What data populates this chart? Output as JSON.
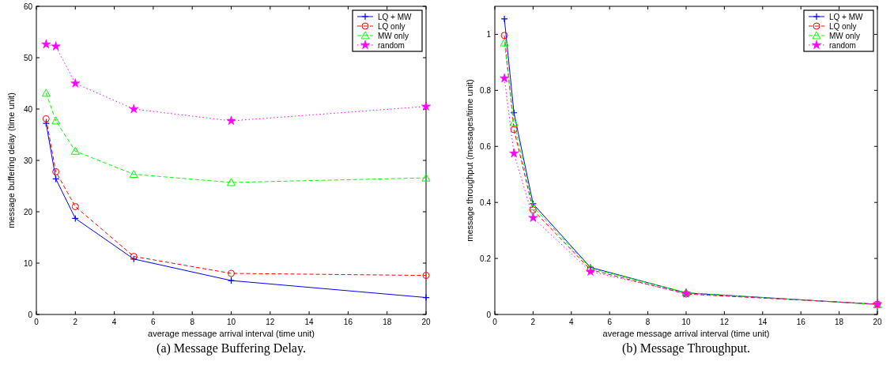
{
  "chart_data": [
    {
      "type": "line",
      "xlabel": "average message arrival interval (time unit)",
      "ylabel": "message buffering delay (time unit)",
      "annotations": [
        "(a) Message Buffering Delay."
      ],
      "x": [
        0.5,
        1,
        2,
        5,
        10,
        20
      ],
      "xlim": [
        0,
        20
      ],
      "xticks": [
        0,
        2,
        4,
        6,
        8,
        10,
        12,
        14,
        16,
        18,
        20
      ],
      "ylim": [
        0,
        60
      ],
      "yticks": [
        0,
        10,
        20,
        30,
        40,
        50,
        60
      ],
      "grid": false,
      "legend": "top right",
      "series": [
        {
          "name": "LQ + MW",
          "color": "#0000ff",
          "marker": "cross",
          "line_style": "solid",
          "values": [
            37.2,
            26.4,
            18.7,
            10.8,
            6.6,
            3.3
          ]
        },
        {
          "name": "LQ only",
          "color": "#ff0000",
          "marker": "circle",
          "line_style": "dashed",
          "values": [
            38.1,
            27.8,
            21.0,
            11.3,
            8.0,
            7.6
          ]
        },
        {
          "name": "MW only",
          "color": "#00ff00",
          "marker": "triangle",
          "line_style": "dashed",
          "values": [
            43.1,
            37.7,
            31.8,
            27.3,
            25.7,
            26.6
          ]
        },
        {
          "name": "random",
          "color": "#ff00ff",
          "marker": "star",
          "line_style": "dotted",
          "values": [
            52.6,
            52.2,
            45.0,
            40.0,
            37.7,
            40.5
          ]
        }
      ]
    },
    {
      "type": "line",
      "xlabel": "average message arrival interval (time unit)",
      "ylabel": "message throughput (messages/time unit)",
      "annotations": [
        "(b) Message Throughput."
      ],
      "x": [
        0.5,
        1,
        2,
        5,
        10,
        20
      ],
      "xlim": [
        0,
        20
      ],
      "xticks": [
        0,
        2,
        4,
        6,
        8,
        10,
        12,
        14,
        16,
        18,
        20
      ],
      "ylim": [
        0,
        1.1
      ],
      "yticks": [
        0,
        0.2,
        0.4,
        0.6,
        0.8,
        1
      ],
      "grid": false,
      "legend": "top right",
      "series": [
        {
          "name": "LQ + MW",
          "color": "#0000ff",
          "marker": "cross",
          "line_style": "solid",
          "values": [
            1.055,
            0.72,
            0.395,
            0.168,
            0.077,
            0.036
          ]
        },
        {
          "name": "LQ only",
          "color": "#ff0000",
          "marker": "circle",
          "line_style": "dashed",
          "values": [
            0.996,
            0.66,
            0.373,
            0.16,
            0.073,
            0.037
          ]
        },
        {
          "name": "MW only",
          "color": "#00ff00",
          "marker": "triangle",
          "line_style": "dashed",
          "values": [
            0.97,
            0.685,
            0.385,
            0.165,
            0.078,
            0.035
          ]
        },
        {
          "name": "random",
          "color": "#ff00ff",
          "marker": "star",
          "line_style": "dotted",
          "values": [
            0.843,
            0.575,
            0.345,
            0.153,
            0.075,
            0.037
          ]
        }
      ]
    }
  ]
}
